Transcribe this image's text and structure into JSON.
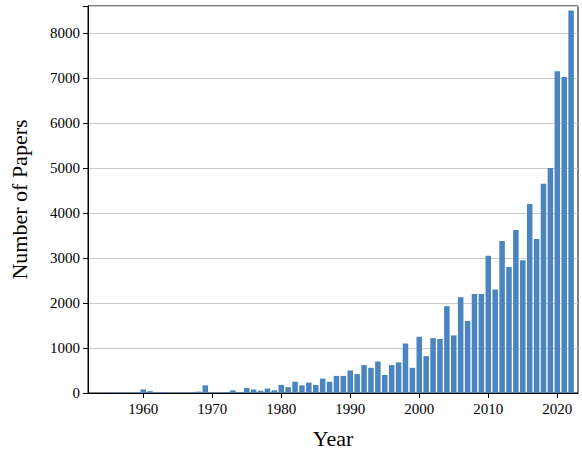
{
  "chart_data": {
    "type": "bar",
    "x_label": "Year",
    "y_label": "Number of Papers",
    "x": [
      1955,
      1956,
      1957,
      1958,
      1959,
      1960,
      1961,
      1962,
      1963,
      1964,
      1965,
      1966,
      1967,
      1968,
      1969,
      1970,
      1971,
      1972,
      1973,
      1974,
      1975,
      1976,
      1977,
      1978,
      1979,
      1980,
      1981,
      1982,
      1983,
      1984,
      1985,
      1986,
      1987,
      1988,
      1989,
      1990,
      1991,
      1992,
      1993,
      1994,
      1995,
      1996,
      1997,
      1998,
      1999,
      2000,
      2001,
      2002,
      2003,
      2004,
      2005,
      2006,
      2007,
      2008,
      2009,
      2010,
      2011,
      2012,
      2013,
      2014,
      2015,
      2016,
      2017,
      2018,
      2019,
      2020,
      2021,
      2022
    ],
    "values": [
      10,
      5,
      10,
      5,
      10,
      80,
      40,
      10,
      20,
      5,
      10,
      5,
      20,
      30,
      170,
      10,
      10,
      20,
      60,
      20,
      110,
      80,
      50,
      100,
      60,
      180,
      130,
      250,
      170,
      230,
      180,
      320,
      250,
      380,
      380,
      500,
      420,
      620,
      560,
      700,
      400,
      620,
      680,
      1100,
      560,
      1250,
      820,
      1220,
      1200,
      1930,
      1280,
      2130,
      1600,
      2200,
      2200,
      3050,
      2300,
      3380,
      2800,
      3620,
      2950,
      4200,
      3420,
      4650,
      5000,
      7150,
      7020,
      8500
    ],
    "color": "#4a85c0",
    "xlim": [
      1952,
      2023
    ],
    "xticks": [
      1960,
      1970,
      1980,
      1990,
      2000,
      2010,
      2020
    ],
    "ylim": [
      0,
      8600
    ],
    "yticks": [
      0,
      1000,
      2000,
      3000,
      4000,
      5000,
      6000,
      7000,
      8000
    ],
    "grid": true
  }
}
